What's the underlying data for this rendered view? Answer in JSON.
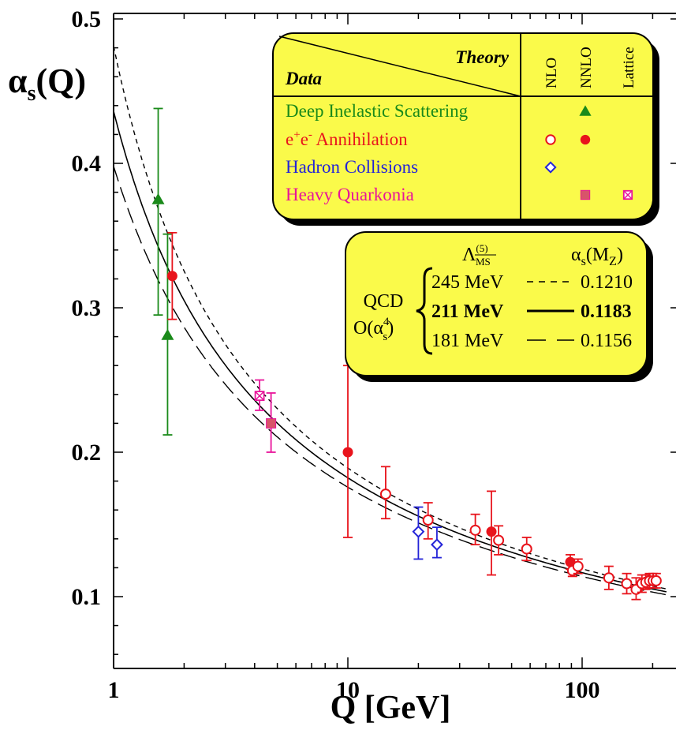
{
  "chart_data": {
    "type": "scatter",
    "title": "",
    "xlabel": "Q [GeV]",
    "ylabel": "αs(Q)",
    "ylabel_base": "α",
    "ylabel_sub": "s",
    "ylabel_rest": "(Q)",
    "x_scale": "log",
    "xlim": [
      1,
      230
    ],
    "ylim": [
      0.05,
      0.5
    ],
    "x_ticks": [
      1,
      10,
      100
    ],
    "x_tick_labels": [
      "1",
      "10",
      "100"
    ],
    "y_ticks": [
      0.1,
      0.2,
      0.3,
      0.4,
      0.5
    ],
    "y_tick_labels": [
      "0.1",
      "0.2",
      "0.3",
      "0.4",
      "0.5"
    ],
    "legend_placement": "top-right",
    "curves": [
      {
        "lambda": 0.245,
        "label": "245 MeV",
        "alpha_mz": "0.1210",
        "style": "short-dash"
      },
      {
        "lambda": 0.211,
        "label": "211 MeV",
        "alpha_mz": "0.1183",
        "style": "solid"
      },
      {
        "lambda": 0.181,
        "label": "181 MeV",
        "alpha_mz": "0.1156",
        "style": "long-dash"
      }
    ],
    "series": [
      {
        "name": "Deep Inelastic Scattering",
        "theory": "NNLO",
        "marker": "triangle",
        "color": "#1a8a1a",
        "points": [
          {
            "x": 1.55,
            "y": 0.375,
            "lo": 0.295,
            "hi": 0.438
          },
          {
            "x": 1.7,
            "y": 0.281,
            "lo": 0.212,
            "hi": 0.351
          }
        ]
      },
      {
        "name": "e+e- Annihilation",
        "theory": "NNLO",
        "marker": "filled-circle",
        "color": "#e8141c",
        "points": [
          {
            "x": 1.78,
            "y": 0.322,
            "lo": 0.292,
            "hi": 0.352
          },
          {
            "x": 10.0,
            "y": 0.2,
            "lo": 0.141,
            "hi": 0.26
          },
          {
            "x": 41.0,
            "y": 0.145,
            "lo": 0.115,
            "hi": 0.173
          },
          {
            "x": 89.0,
            "y": 0.124,
            "lo": 0.119,
            "hi": 0.129
          }
        ]
      },
      {
        "name": "e+e- Annihilation",
        "theory": "NLO",
        "marker": "open-circle",
        "color": "#e8141c",
        "points": [
          {
            "x": 14.5,
            "y": 0.171,
            "lo": 0.154,
            "hi": 0.19
          },
          {
            "x": 22.0,
            "y": 0.153,
            "lo": 0.14,
            "hi": 0.165
          },
          {
            "x": 35.0,
            "y": 0.146,
            "lo": 0.136,
            "hi": 0.157
          },
          {
            "x": 44.0,
            "y": 0.139,
            "lo": 0.129,
            "hi": 0.149
          },
          {
            "x": 58.0,
            "y": 0.133,
            "lo": 0.125,
            "hi": 0.141
          },
          {
            "x": 91.0,
            "y": 0.118,
            "lo": 0.114,
            "hi": 0.122
          },
          {
            "x": 96.0,
            "y": 0.121,
            "lo": 0.116,
            "hi": 0.126
          },
          {
            "x": 130.0,
            "y": 0.113,
            "lo": 0.105,
            "hi": 0.121
          },
          {
            "x": 155.0,
            "y": 0.109,
            "lo": 0.102,
            "hi": 0.116
          },
          {
            "x": 170.0,
            "y": 0.105,
            "lo": 0.098,
            "hi": 0.113
          },
          {
            "x": 180.0,
            "y": 0.109,
            "lo": 0.103,
            "hi": 0.115
          },
          {
            "x": 187.0,
            "y": 0.11,
            "lo": 0.105,
            "hi": 0.115
          },
          {
            "x": 194.0,
            "y": 0.111,
            "lo": 0.106,
            "hi": 0.116
          },
          {
            "x": 201.0,
            "y": 0.111,
            "lo": 0.106,
            "hi": 0.116
          },
          {
            "x": 207.0,
            "y": 0.111,
            "lo": 0.106,
            "hi": 0.116
          }
        ]
      },
      {
        "name": "Hadron Collisions",
        "theory": "NLO",
        "marker": "open-diamond",
        "color": "#2424d8",
        "points": [
          {
            "x": 20.0,
            "y": 0.145,
            "lo": 0.126,
            "hi": 0.162
          },
          {
            "x": 24.0,
            "y": 0.136,
            "lo": 0.127,
            "hi": 0.148
          }
        ]
      },
      {
        "name": "Heavy Quarkonia",
        "theory": "NNLO",
        "marker": "filled-square",
        "color": "#e8149a",
        "points": [
          {
            "x": 4.7,
            "y": 0.22,
            "lo": 0.2,
            "hi": 0.241
          }
        ]
      },
      {
        "name": "Heavy Quarkonia",
        "theory": "Lattice",
        "marker": "boxed-cross",
        "color": "#e8149a",
        "points": [
          {
            "x": 4.2,
            "y": 0.239,
            "lo": 0.229,
            "hi": 0.25
          }
        ]
      }
    ]
  },
  "legend": {
    "theory_header": "Theory",
    "data_header": "Data",
    "columns": [
      "NLO",
      "NNLO",
      "Lattice"
    ],
    "rows": [
      {
        "label_parts": [
          {
            "t": "Deep Inelastic Scattering"
          }
        ],
        "color": "#1a8a1a",
        "markers": [
          null,
          "triangle",
          null
        ]
      },
      {
        "label_parts": [
          {
            "t": "e"
          },
          {
            "t": "+",
            "sup": true
          },
          {
            "t": "e"
          },
          {
            "t": "-",
            "sup": true
          },
          {
            "t": " Annihilation"
          }
        ],
        "color": "#e8141c",
        "markers": [
          "open-circle",
          "filled-circle",
          null
        ]
      },
      {
        "label_parts": [
          {
            "t": "Hadron Collisions"
          }
        ],
        "color": "#2424d8",
        "markers": [
          "open-diamond",
          null,
          null
        ]
      },
      {
        "label_parts": [
          {
            "t": "Heavy Quarkonia"
          }
        ],
        "color": "#e8149a",
        "markers": [
          null,
          "filled-square",
          "boxed-cross"
        ]
      }
    ],
    "colors": {
      "box_fill": "#fafa4a",
      "shadow": "#000000"
    }
  },
  "qcd_box": {
    "lambda_header": "Λ",
    "lambda_sup": "(5)",
    "lambda_sub": "MS",
    "alpha_header": "α",
    "alpha_sub": "s",
    "alpha_arg_open": "(M",
    "alpha_arg_sub": "Z",
    "alpha_arg_close": ")",
    "qcd_label": "QCD",
    "order_label": "O(α",
    "order_sup": "4",
    "order_sub": "s",
    "order_close": ")"
  }
}
